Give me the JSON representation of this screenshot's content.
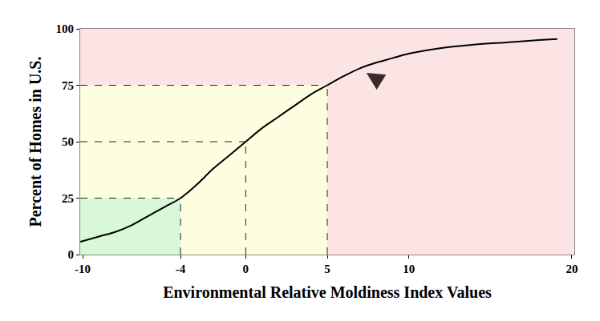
{
  "chart_data": {
    "type": "line",
    "x_label": "Environmental Relative Moldiness Index Values",
    "y_label": "Percent of Homes in U.S.",
    "x": [
      -10.15,
      -9,
      -8,
      -7,
      -6,
      -5,
      -4,
      -3,
      -2,
      -1,
      0,
      1,
      2,
      3,
      4,
      5,
      6,
      7,
      8,
      9,
      10,
      12,
      14,
      16,
      18,
      19.1
    ],
    "values": [
      5.7,
      8,
      10,
      13,
      17,
      21,
      25,
      31,
      38,
      44,
      50,
      56,
      61,
      66,
      71,
      75,
      79,
      82.5,
      85,
      87,
      89,
      91.5,
      93,
      94,
      95,
      95.5
    ],
    "color": "#000000",
    "line_style": "solid",
    "xlim": [
      -10.15,
      20.15
    ],
    "ylim": [
      0,
      100
    ],
    "xticks": [
      -10,
      -4,
      0,
      5,
      10,
      20
    ],
    "yticks": [
      0,
      25,
      50,
      75,
      100
    ],
    "grid": false,
    "quartiles": [
      {
        "x": -4,
        "y": 25
      },
      {
        "x": 0,
        "y": 50
      },
      {
        "x": 5,
        "y": 75
      }
    ],
    "pointer": {
      "x": 7.4,
      "y": 80.5
    }
  }
}
